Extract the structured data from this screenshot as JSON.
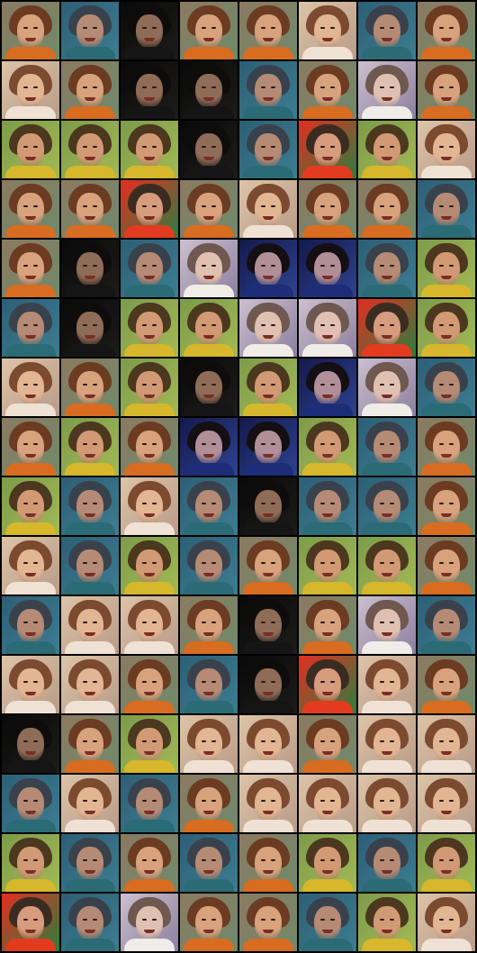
{
  "image": {
    "description_type": "grid-of-generated-face-thumbnails",
    "rows": 16,
    "columns": 8,
    "background_color": "#000000"
  },
  "palettes": [
    {
      "bg1": "#8b7a61",
      "bg2": "#6f8a6b",
      "hair": "#6b3b22",
      "skin": "#d8a27c",
      "shirt": "#d86c20"
    },
    {
      "bg1": "#2d5f76",
      "bg2": "#3d7d91",
      "hair": "#39424c",
      "skin": "#b58b75",
      "shirt": "#2b6b75"
    },
    {
      "bg1": "#090909",
      "bg2": "#1d1c1a",
      "hair": "#0e0d0c",
      "skin": "#8f6c57",
      "shirt": "#151515"
    },
    {
      "bg1": "#dcc4a8",
      "bg2": "#b99b88",
      "hair": "#7c4a2e",
      "skin": "#e2b593",
      "shirt": "#f0e1d5"
    },
    {
      "bg1": "#7d9b4a",
      "bg2": "#a2ba55",
      "hair": "#4b381e",
      "skin": "#d29a74",
      "shirt": "#d7b72b"
    },
    {
      "bg1": "#cbbfcf",
      "bg2": "#8c7f9f",
      "hair": "#6e584f",
      "skin": "#e0c1b1",
      "shirt": "#f0ece8"
    },
    {
      "bg1": "#13194b",
      "bg2": "#2e4390",
      "hair": "#140f12",
      "skin": "#b08f99",
      "shirt": "#1d2d77"
    },
    {
      "bg1": "#e52d21",
      "bg2": "#2a7f3d",
      "hair": "#3b2c22",
      "skin": "#d79b7d",
      "shirt": "#e33b20"
    }
  ],
  "tiles": [
    [
      0,
      1,
      2,
      0,
      0,
      3,
      1,
      0
    ],
    [
      3,
      0,
      2,
      2,
      1,
      0,
      5,
      0
    ],
    [
      4,
      4,
      4,
      2,
      1,
      7,
      4,
      3
    ],
    [
      0,
      0,
      7,
      0,
      3,
      0,
      0,
      1
    ],
    [
      0,
      2,
      1,
      5,
      6,
      6,
      1,
      4
    ],
    [
      1,
      2,
      4,
      4,
      5,
      5,
      7,
      4
    ],
    [
      3,
      0,
      4,
      2,
      4,
      6,
      5,
      1
    ],
    [
      0,
      4,
      0,
      6,
      6,
      4,
      1,
      0
    ],
    [
      4,
      1,
      3,
      1,
      2,
      1,
      1,
      0
    ],
    [
      3,
      1,
      4,
      1,
      0,
      4,
      4,
      0
    ],
    [
      1,
      3,
      3,
      0,
      2,
      0,
      5,
      1
    ],
    [
      3,
      3,
      0,
      1,
      2,
      7,
      3,
      0
    ],
    [
      2,
      0,
      4,
      3,
      3,
      0,
      3,
      3
    ],
    [
      1,
      3,
      1,
      0,
      3,
      3,
      3,
      3
    ],
    [
      4,
      1,
      0,
      1,
      0,
      4,
      1,
      4
    ],
    [
      7,
      1,
      5,
      0,
      0,
      1,
      4,
      3
    ]
  ]
}
